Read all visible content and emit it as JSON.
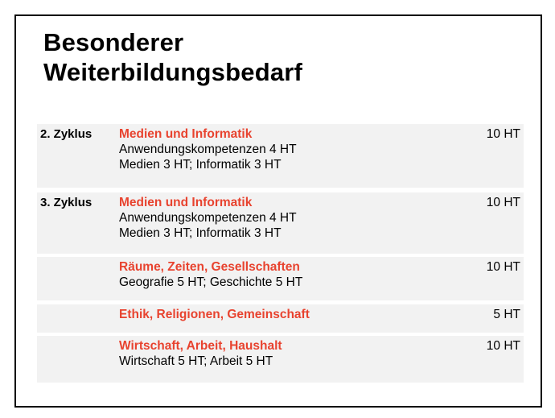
{
  "title_lines": [
    "Besonderer",
    "Weiterbildungsbedarf"
  ],
  "rows": [
    {
      "cycle": "2. Zyklus",
      "subject": "Medien und Informatik",
      "details": [
        "Anwendungskompetenzen 4 HT",
        "Medien 3 HT; Informatik  3 HT"
      ],
      "hours": "10 HT"
    },
    {
      "cycle": "3. Zyklus",
      "subject": "Medien und Informatik",
      "details": [
        "Anwendungskompetenzen 4 HT",
        "Medien 3 HT; Informatik  3 HT"
      ],
      "hours": "10 HT"
    },
    {
      "cycle": "",
      "subject": "Räume, Zeiten, Gesellschaften",
      "details": [
        "Geografie 5 HT; Geschichte 5 HT"
      ],
      "hours": "10 HT"
    },
    {
      "cycle": "",
      "subject": "Ethik, Religionen, Gemeinschaft",
      "details": [],
      "hours": "5 HT"
    },
    {
      "cycle": "",
      "subject": "Wirtschaft, Arbeit, Haushalt",
      "details": [
        "Wirtschaft 5 HT; Arbeit 5 HT"
      ],
      "hours": "10 HT"
    }
  ],
  "colors": {
    "subject_heading": "#e8432f",
    "row_background": "#f2f2f2",
    "border": "#000000"
  }
}
